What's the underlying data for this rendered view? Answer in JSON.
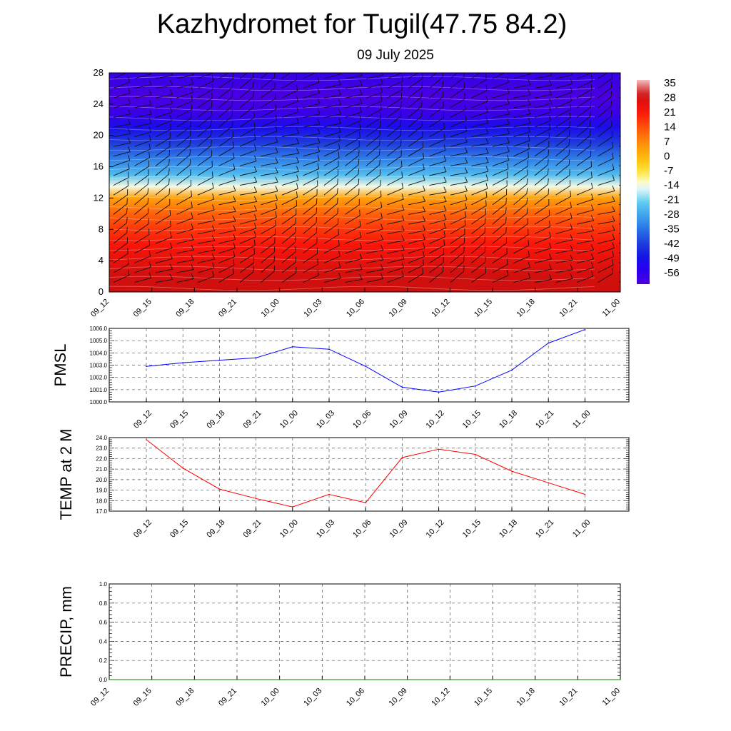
{
  "header": {
    "title": "Kazhydromet for Tugil(47.75 84.2)",
    "subtitle": "09 July 2025"
  },
  "colorbar": {
    "labels": [
      "35",
      "28",
      "21",
      "14",
      "7",
      "0",
      "-7",
      "-14",
      "-21",
      "-28",
      "-35",
      "-42",
      "-49",
      "-56"
    ]
  },
  "chart_data": [
    {
      "type": "heatmap",
      "title": "",
      "xlabel": "",
      "ylabel": "",
      "ylim": [
        0,
        28
      ],
      "y_ticks": [
        "0",
        "4",
        "8",
        "12",
        "16",
        "20",
        "24",
        "28"
      ],
      "x_categories": [
        "09_12",
        "09_15",
        "09_18",
        "09_21",
        "10_00",
        "10_03",
        "10_06",
        "10_09",
        "10_12",
        "10_15",
        "10_18",
        "10_21",
        "11_00"
      ],
      "color_scale": {
        "min": -56,
        "max": 35
      },
      "overlay": "wind barbs",
      "temperature_profile_by_level": [
        {
          "level": 0,
          "value": 28
        },
        {
          "level": 2,
          "value": 27
        },
        {
          "level": 4,
          "value": 24
        },
        {
          "level": 6,
          "value": 21
        },
        {
          "level": 8,
          "value": 17
        },
        {
          "level": 10,
          "value": 12
        },
        {
          "level": 12,
          "value": 4
        },
        {
          "level": 13.5,
          "value": -12
        },
        {
          "level": 15,
          "value": -22
        },
        {
          "level": 17,
          "value": -30
        },
        {
          "level": 19,
          "value": -38
        },
        {
          "level": 21,
          "value": -46
        },
        {
          "level": 23,
          "value": -53
        },
        {
          "level": 25,
          "value": -55
        },
        {
          "level": 28,
          "value": -52
        }
      ]
    },
    {
      "type": "line",
      "title": "",
      "xlabel": "",
      "ylabel": "PMSL",
      "ylim": [
        1000,
        1006
      ],
      "y_ticks": [
        "1000.0",
        "1001.0",
        "1002.0",
        "1003.0",
        "1004.0",
        "1005.0",
        "1006.0"
      ],
      "categories": [
        "09_12",
        "09_15",
        "09_18",
        "09_21",
        "10_00",
        "10_03",
        "10_06",
        "10_09",
        "10_12",
        "10_15",
        "10_18",
        "10_21",
        "11_00"
      ],
      "series": [
        {
          "color": "#0000ff",
          "values": [
            1002.9,
            1003.2,
            1003.4,
            1003.6,
            1004.5,
            1004.3,
            1002.9,
            1001.2,
            1000.8,
            1001.3,
            1002.6,
            1004.8,
            1005.9
          ]
        }
      ]
    },
    {
      "type": "line",
      "title": "",
      "xlabel": "",
      "ylabel": "TEMP at 2 M",
      "ylim": [
        17,
        24
      ],
      "y_ticks": [
        "17.0",
        "18.0",
        "19.0",
        "20.0",
        "21.0",
        "22.0",
        "23.0",
        "24.0"
      ],
      "categories": [
        "09_12",
        "09_15",
        "09_18",
        "09_21",
        "10_00",
        "10_03",
        "10_06",
        "10_09",
        "10_12",
        "10_15",
        "10_18",
        "10_21",
        "11_00"
      ],
      "series": [
        {
          "color": "#ff0000",
          "values": [
            23.8,
            21.1,
            19.1,
            18.2,
            17.4,
            18.6,
            17.8,
            22.1,
            22.9,
            22.4,
            20.8,
            19.7,
            18.6
          ]
        }
      ]
    },
    {
      "type": "line",
      "title": "",
      "xlabel": "",
      "ylabel": "PRECIP, mm",
      "ylim": [
        0,
        1
      ],
      "y_ticks": [
        "0.0",
        "0.2",
        "0.4",
        "0.6",
        "0.8",
        "1.0"
      ],
      "categories": [
        "09_12",
        "09_15",
        "09_18",
        "09_21",
        "10_00",
        "10_03",
        "10_06",
        "10_09",
        "10_12",
        "10_15",
        "10_18",
        "10_21",
        "11_00"
      ],
      "series": [
        {
          "color": "#008000",
          "values": [
            0,
            0,
            0,
            0,
            0,
            0,
            0,
            0,
            0,
            0,
            0,
            0,
            0
          ]
        }
      ]
    }
  ]
}
